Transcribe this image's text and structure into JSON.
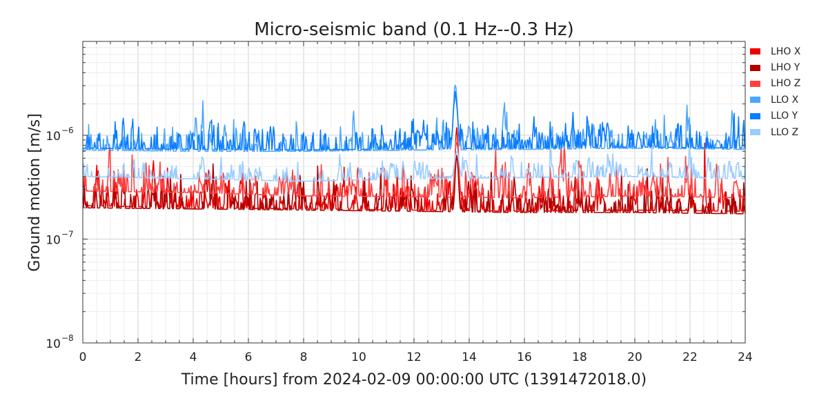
{
  "chart_data": {
    "type": "line",
    "title": "Micro-seismic band (0.1 Hz--0.3 Hz)",
    "xlabel": "Time [hours] from 2024-02-09 00:00:00 UTC (1391472018.0)",
    "ylabel": "Ground motion [m/s]",
    "xlim": [
      0,
      24
    ],
    "ylim": [
      1e-08,
      8e-06
    ],
    "yscale": "log",
    "grid": true,
    "legend_position": "outside-right-top",
    "x_ticks": [
      "0",
      "2",
      "4",
      "6",
      "8",
      "10",
      "12",
      "14",
      "16",
      "18",
      "20",
      "22",
      "24"
    ],
    "y_ticks": [
      {
        "base": "10",
        "exp": "−8"
      },
      {
        "base": "10",
        "exp": "−7"
      },
      {
        "base": "10",
        "exp": "−6"
      }
    ],
    "series": [
      {
        "name": "LHO X",
        "color": "#ee0000",
        "noise": 0.12,
        "base": [
          [
            0,
            2.1e-07
          ],
          [
            4,
            2e-07
          ],
          [
            8,
            1.95e-07
          ],
          [
            12,
            1.9e-07
          ],
          [
            16,
            1.85e-07
          ],
          [
            20,
            1.9e-07
          ],
          [
            24,
            1.85e-07
          ]
        ],
        "peak": {
          "x": 13.55,
          "value": 1.1e-06,
          "width": 0.07
        }
      },
      {
        "name": "LHO Y",
        "color": "#b00000",
        "noise": 0.12,
        "base": [
          [
            0,
            2e-07
          ],
          [
            4,
            1.95e-07
          ],
          [
            8,
            1.9e-07
          ],
          [
            12,
            1.85e-07
          ],
          [
            16,
            1.8e-07
          ],
          [
            20,
            1.8e-07
          ],
          [
            24,
            1.75e-07
          ]
        ],
        "peak": {
          "x": 13.55,
          "value": 6e-07,
          "width": 0.07
        }
      },
      {
        "name": "LHO Z",
        "color": "#ff4040",
        "noise": 0.13,
        "base": [
          [
            0,
            2.9e-07
          ],
          [
            4,
            2.8e-07
          ],
          [
            8,
            2.6e-07
          ],
          [
            12,
            2.55e-07
          ],
          [
            16,
            2.5e-07
          ],
          [
            20,
            2.6e-07
          ],
          [
            24,
            2.5e-07
          ]
        ],
        "peak": {
          "x": 13.55,
          "value": 9e-07,
          "width": 0.08
        }
      },
      {
        "name": "LLO X",
        "color": "#4ba6ff",
        "noise": 0.11,
        "base": [
          [
            0,
            7.2e-07
          ],
          [
            4,
            7e-07
          ],
          [
            8,
            7e-07
          ],
          [
            12,
            7.2e-07
          ],
          [
            16,
            7.3e-07
          ],
          [
            20,
            7.5e-07
          ],
          [
            24,
            7.3e-07
          ]
        ],
        "peak": {
          "x": 13.5,
          "value": 3.2e-06,
          "width": 0.08
        }
      },
      {
        "name": "LLO Y",
        "color": "#0a7cff",
        "noise": 0.11,
        "base": [
          [
            0,
            7.5e-07
          ],
          [
            4,
            7.3e-07
          ],
          [
            8,
            7.2e-07
          ],
          [
            12,
            7.4e-07
          ],
          [
            16,
            7.5e-07
          ],
          [
            20,
            7.7e-07
          ],
          [
            24,
            7.5e-07
          ]
        ],
        "peak": {
          "x": 13.5,
          "value": 2.5e-06,
          "width": 0.09
        }
      },
      {
        "name": "LLO Z",
        "color": "#99ccff",
        "noise": 0.08,
        "base": [
          [
            0,
            4e-07
          ],
          [
            4,
            3.8e-07
          ],
          [
            8,
            3.6e-07
          ],
          [
            12,
            3.8e-07
          ],
          [
            16,
            3.9e-07
          ],
          [
            20,
            4e-07
          ],
          [
            24,
            3.8e-07
          ]
        ],
        "peak": {
          "x": 13.55,
          "value": 7e-07,
          "width": 0.1
        }
      }
    ]
  }
}
